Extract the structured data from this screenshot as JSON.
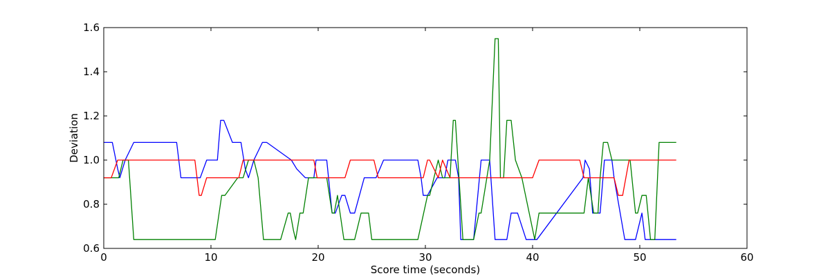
{
  "chart_data": {
    "type": "line",
    "title": "",
    "xlabel": "Score time (seconds)",
    "ylabel": "Deviation",
    "xlim": [
      0,
      60
    ],
    "ylim": [
      0.6,
      1.6
    ],
    "xticks": [
      0,
      10,
      20,
      30,
      40,
      50,
      60
    ],
    "yticks": [
      0.6,
      0.8,
      1.0,
      1.2,
      1.4,
      1.6
    ],
    "xtick_labels": [
      "0",
      "10",
      "20",
      "30",
      "40",
      "50",
      "60"
    ],
    "ytick_labels": [
      "0.6",
      "0.8",
      "1.0",
      "1.2",
      "1.4",
      "1.6"
    ],
    "grid": false,
    "legend": "none",
    "series": [
      {
        "color": "#0000ff",
        "x": [
          0,
          0.8,
          1.3,
          1.5,
          2.0,
          2.8,
          6.8,
          7.2,
          9.0,
          9.6,
          10.6,
          10.9,
          11.2,
          12.0,
          12.8,
          13.2,
          13.5,
          14.0,
          14.8,
          15.2,
          17.5,
          18.0,
          18.8,
          19.6,
          19.8,
          20.8,
          21.3,
          21.6,
          22.2,
          22.5,
          23.0,
          23.4,
          24.3,
          25.2,
          25.4,
          26.1,
          29.3,
          29.6,
          29.8,
          30.2,
          31.1,
          31.6,
          31.8,
          32.1,
          32.8,
          33.1,
          33.3,
          33.5,
          34.5,
          35.2,
          36.0,
          36.5,
          37.2,
          37.6,
          38.0,
          38.6,
          39.4,
          40.4,
          44.7,
          44.9,
          45.3,
          45.6,
          46.3,
          46.7,
          47.4,
          47.6,
          48.6,
          49.3,
          49.6,
          50.2,
          50.5,
          53.4
        ],
        "y": [
          1.08,
          1.08,
          0.96,
          0.92,
          1.0,
          1.08,
          1.08,
          0.92,
          0.92,
          1.0,
          1.0,
          1.18,
          1.18,
          1.08,
          1.08,
          0.96,
          0.92,
          1.0,
          1.08,
          1.08,
          1.0,
          0.96,
          0.92,
          0.92,
          1.0,
          1.0,
          0.76,
          0.76,
          0.84,
          0.84,
          0.76,
          0.76,
          0.92,
          0.92,
          0.92,
          1.0,
          1.0,
          0.92,
          0.84,
          0.84,
          0.92,
          0.92,
          0.92,
          1.0,
          1.0,
          0.92,
          0.64,
          0.64,
          0.64,
          1.0,
          1.0,
          0.64,
          0.64,
          0.64,
          0.76,
          0.76,
          0.64,
          0.64,
          0.92,
          1.0,
          0.96,
          0.76,
          0.76,
          1.0,
          1.0,
          0.92,
          0.64,
          0.64,
          0.64,
          0.76,
          0.64,
          0.64
        ]
      },
      {
        "color": "#008000",
        "x": [
          0,
          0.8,
          1.4,
          1.8,
          2.3,
          2.8,
          10.4,
          11.0,
          11.3,
          12.5,
          13.0,
          13.5,
          14.0,
          14.4,
          14.9,
          16.5,
          17.2,
          17.4,
          17.7,
          17.9,
          18.3,
          18.6,
          19.1,
          19.6,
          20.0,
          20.8,
          21.3,
          21.5,
          21.8,
          22.4,
          23.4,
          24.0,
          24.5,
          24.7,
          25.0,
          26.0,
          29.3,
          30.2,
          30.4,
          30.8,
          31.2,
          31.6,
          32.3,
          32.6,
          32.8,
          33.5,
          34.5,
          35.0,
          35.2,
          36.0,
          36.5,
          36.8,
          37.0,
          37.3,
          37.6,
          38.0,
          38.4,
          39.0,
          40.2,
          40.6,
          44.8,
          45.2,
          45.7,
          46.1,
          46.3,
          46.6,
          47.0,
          47.4,
          48.2,
          48.8,
          49.1,
          49.6,
          49.8,
          50.2,
          50.6,
          51.0,
          51.4,
          51.8,
          53.4
        ],
        "y": [
          0.92,
          0.92,
          0.92,
          1.0,
          1.0,
          0.64,
          0.64,
          0.84,
          0.84,
          0.92,
          0.92,
          1.0,
          1.0,
          0.92,
          0.64,
          0.64,
          0.76,
          0.76,
          0.68,
          0.64,
          0.76,
          0.76,
          0.92,
          0.92,
          0.92,
          0.92,
          0.76,
          0.76,
          0.84,
          0.64,
          0.64,
          0.76,
          0.76,
          0.76,
          0.64,
          0.64,
          0.64,
          0.84,
          0.84,
          0.92,
          1.0,
          0.92,
          0.92,
          1.18,
          1.18,
          0.64,
          0.64,
          0.76,
          0.76,
          1.0,
          1.55,
          1.55,
          0.92,
          0.92,
          1.18,
          1.18,
          1.0,
          0.92,
          0.64,
          0.76,
          0.76,
          0.92,
          0.76,
          0.76,
          0.92,
          1.08,
          1.08,
          1.0,
          1.0,
          1.0,
          1.0,
          0.76,
          0.76,
          0.84,
          0.84,
          0.64,
          0.64,
          1.08,
          1.08
        ]
      },
      {
        "color": "#ff0000",
        "x": [
          0,
          0.7,
          1.3,
          2.2,
          8.5,
          8.9,
          9.1,
          9.6,
          12.6,
          13.0,
          13.4,
          19.6,
          19.9,
          22.5,
          23.0,
          25.2,
          25.6,
          29.8,
          30.2,
          30.4,
          31.2,
          31.6,
          32.3,
          32.8,
          39.6,
          40.0,
          40.6,
          44.4,
          44.8,
          47.6,
          48.0,
          48.4,
          49.0,
          53.4
        ],
        "y": [
          0.92,
          0.92,
          1.0,
          1.0,
          1.0,
          0.84,
          0.84,
          0.92,
          0.92,
          1.0,
          1.0,
          1.0,
          0.92,
          0.92,
          1.0,
          1.0,
          0.92,
          0.92,
          1.0,
          1.0,
          0.92,
          1.0,
          0.92,
          0.92,
          0.92,
          0.92,
          1.0,
          1.0,
          0.92,
          0.92,
          0.84,
          0.84,
          1.0,
          1.0
        ]
      }
    ]
  }
}
